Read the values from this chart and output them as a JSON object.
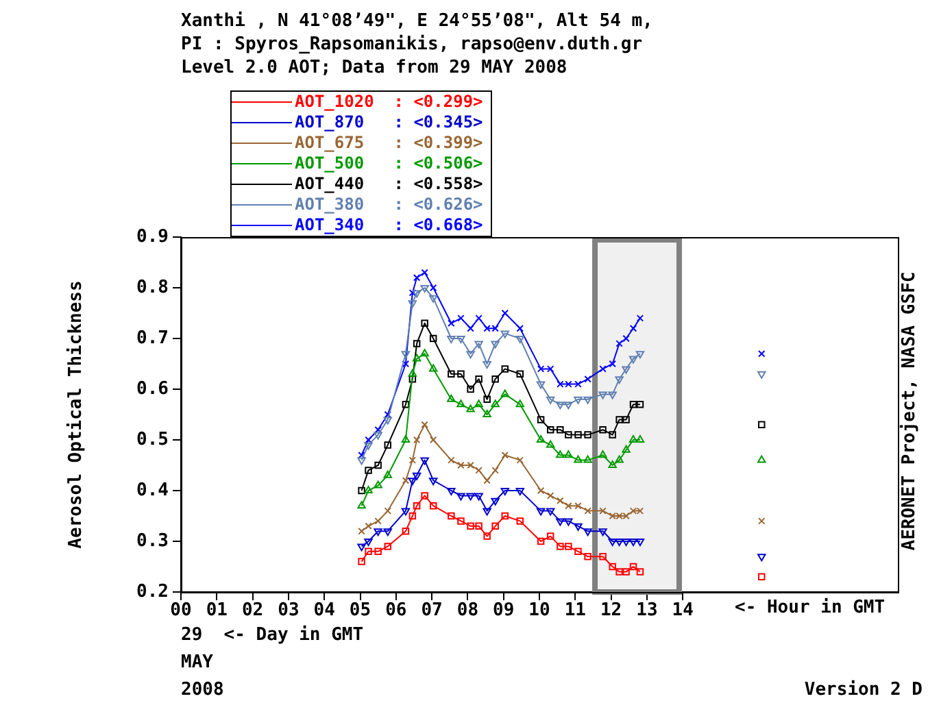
{
  "chart_data": {
    "type": "line",
    "title": "Xanthi , N 41°08’49\", E 24°55’08\", Alt 54 m,",
    "subtitle": "PI : Spyros_Rapsomanikis, rapso@env.duth.gr\nLevel 2.0 AOT; Data from 29 MAY 2008",
    "ylabel": "Aerosol Optical Thickness",
    "xlabel": "<- Hour in GMT",
    "annotations": [
      "29  <- Day in GMT",
      "MAY",
      "2008",
      "Version 2 D",
      "AERONET Project, NASA GSFC"
    ],
    "x": [
      5.04,
      5.23,
      5.5,
      5.77,
      6.27,
      6.46,
      6.58,
      6.8,
      7.04,
      7.54,
      7.81,
      8.08,
      8.31,
      8.54,
      8.77,
      9.04,
      9.46,
      10.04,
      10.31,
      10.58,
      10.81,
      11.08,
      11.35,
      11.77,
      12.04,
      12.23,
      12.42,
      12.62,
      12.81,
      14.5,
      16.2
    ],
    "series": [
      {
        "name": "AOT_1020  : <0.299>",
        "color": "#ff0000",
        "marker": "square",
        "values": [
          0.26,
          0.28,
          0.28,
          0.29,
          0.32,
          0.35,
          0.37,
          0.39,
          0.37,
          0.35,
          0.34,
          0.33,
          0.33,
          0.31,
          0.33,
          0.35,
          0.34,
          0.3,
          0.31,
          0.29,
          0.29,
          0.28,
          0.27,
          0.27,
          0.25,
          0.24,
          0.24,
          0.25,
          0.24,
          null,
          0.23
        ]
      },
      {
        "name": "AOT_870   : <0.345>",
        "color": "#0000cc",
        "marker": "triangle-down",
        "values": [
          0.29,
          0.3,
          0.32,
          0.32,
          0.36,
          0.42,
          0.43,
          0.46,
          0.42,
          0.4,
          0.39,
          0.39,
          0.39,
          0.36,
          0.38,
          0.4,
          0.4,
          0.36,
          0.36,
          0.34,
          0.34,
          0.33,
          0.32,
          0.32,
          0.3,
          0.3,
          0.3,
          0.3,
          0.3,
          null,
          0.27
        ]
      },
      {
        "name": "AOT_675   : <0.399>",
        "color": "#996633",
        "marker": "cross",
        "values": [
          0.32,
          0.33,
          0.34,
          0.36,
          0.42,
          0.46,
          0.5,
          0.53,
          0.5,
          0.46,
          0.45,
          0.45,
          0.44,
          0.42,
          0.44,
          0.47,
          0.46,
          0.4,
          0.39,
          0.38,
          0.37,
          0.37,
          0.36,
          0.36,
          0.35,
          0.35,
          0.35,
          0.36,
          0.36,
          null,
          0.34
        ]
      },
      {
        "name": "AOT_500   : <0.506>",
        "color": "#009900",
        "marker": "triangle",
        "values": [
          0.37,
          0.4,
          0.41,
          0.43,
          0.5,
          0.63,
          0.66,
          0.67,
          0.64,
          0.58,
          0.57,
          0.56,
          0.57,
          0.55,
          0.57,
          0.59,
          0.57,
          0.5,
          0.49,
          0.47,
          0.47,
          0.46,
          0.46,
          0.47,
          0.45,
          0.46,
          0.48,
          0.5,
          0.5,
          null,
          0.46
        ]
      },
      {
        "name": "AOT_440   : <0.558>",
        "color": "#000000",
        "marker": "square",
        "values": [
          0.4,
          0.44,
          0.45,
          0.49,
          0.57,
          0.62,
          0.69,
          0.73,
          0.7,
          0.63,
          0.63,
          0.6,
          0.62,
          0.58,
          0.62,
          0.64,
          0.63,
          0.54,
          0.52,
          0.52,
          0.51,
          0.51,
          0.51,
          0.52,
          0.51,
          0.54,
          0.54,
          0.57,
          0.57,
          null,
          0.53
        ]
      },
      {
        "name": "AOT_380   : <0.626>",
        "color": "#6080b0",
        "marker": "triangle-down",
        "values": [
          0.46,
          0.49,
          0.51,
          0.54,
          0.67,
          0.77,
          0.79,
          0.8,
          0.78,
          0.7,
          0.7,
          0.67,
          0.69,
          0.65,
          0.69,
          0.71,
          0.7,
          0.61,
          0.58,
          0.57,
          0.57,
          0.58,
          0.58,
          0.59,
          0.59,
          0.62,
          0.64,
          0.66,
          0.67,
          null,
          0.63
        ]
      },
      {
        "name": "AOT_340   : <0.668>",
        "color": "#0000ff",
        "marker": "cross",
        "values": [
          0.47,
          0.5,
          0.52,
          0.55,
          0.65,
          0.79,
          0.82,
          0.83,
          0.8,
          0.73,
          0.74,
          0.72,
          0.74,
          0.72,
          0.72,
          0.75,
          0.72,
          0.64,
          0.64,
          0.61,
          0.61,
          0.61,
          0.62,
          0.64,
          0.65,
          0.69,
          0.7,
          0.72,
          0.74,
          null,
          0.67
        ]
      }
    ],
    "xlim": [
      0,
      20
    ],
    "xticks": [
      {
        "value": 0,
        "label": "00"
      },
      {
        "value": 1,
        "label": "01"
      },
      {
        "value": 2,
        "label": "02"
      },
      {
        "value": 3,
        "label": "03"
      },
      {
        "value": 4,
        "label": "04"
      },
      {
        "value": 5,
        "label": "05"
      },
      {
        "value": 6,
        "label": "06"
      },
      {
        "value": 7,
        "label": "07"
      },
      {
        "value": 8,
        "label": "08"
      },
      {
        "value": 9,
        "label": "09"
      },
      {
        "value": 10,
        "label": "10"
      },
      {
        "value": 11,
        "label": "11"
      },
      {
        "value": 12,
        "label": "12"
      },
      {
        "value": 13,
        "label": "13"
      },
      {
        "value": 14,
        "label": "14"
      }
    ],
    "ylim": [
      0.2,
      0.9
    ],
    "yticks": [
      0.2,
      0.3,
      0.4,
      0.5,
      0.6,
      0.7,
      0.8,
      0.9
    ],
    "bands": [
      {
        "axis": "x",
        "from": 11.55,
        "to": 13.9,
        "color": "#808080"
      }
    ],
    "grid": false,
    "legend": "top left",
    "line_style": "solid"
  }
}
